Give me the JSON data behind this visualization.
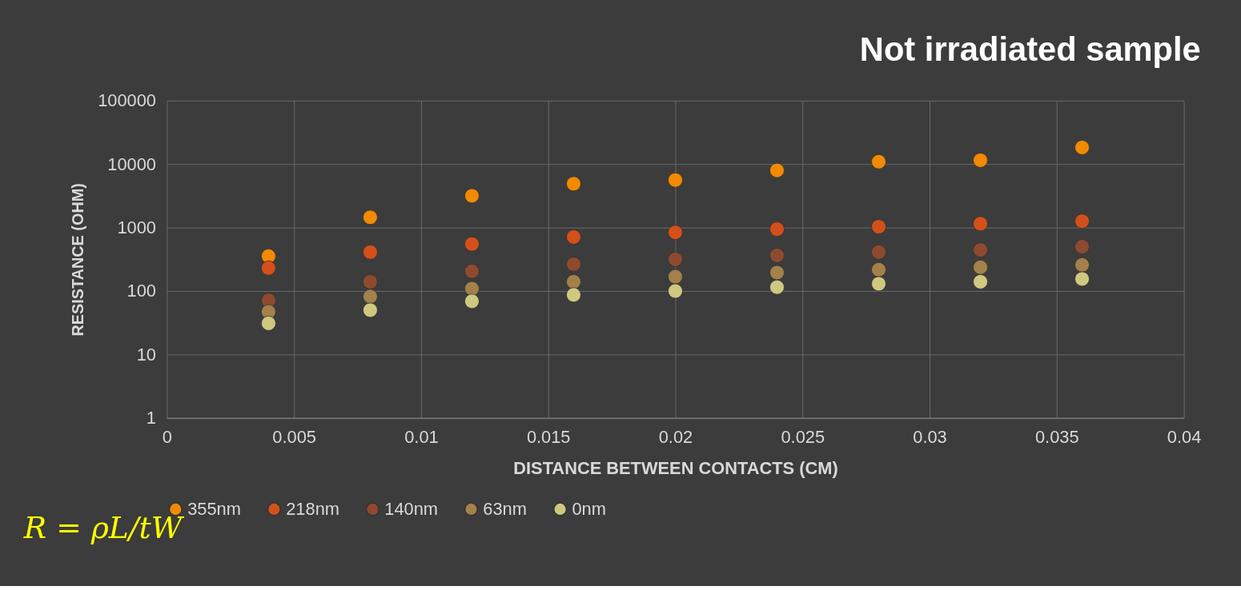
{
  "chart_data": {
    "type": "scatter",
    "title": "Not irradiated sample",
    "xlabel": "DISTANCE BETWEEN CONTACTS (CM)",
    "ylabel": "RESISTANCE (OHM)",
    "x": [
      0.004,
      0.008,
      0.012,
      0.016,
      0.02,
      0.024,
      0.028,
      0.032,
      0.036
    ],
    "series": [
      {
        "name": "355nm",
        "color": "#f28a00",
        "values": [
          355,
          1450,
          3160,
          4900,
          5600,
          7950,
          10900,
          11500,
          18300
        ]
      },
      {
        "name": "218nm",
        "color": "#d4501a",
        "values": [
          230,
          410,
          550,
          710,
          840,
          945,
          1030,
          1150,
          1260
        ]
      },
      {
        "name": "140nm",
        "color": "#8e4a2e",
        "values": [
          71,
          140,
          205,
          265,
          316,
          365,
          410,
          445,
          500
        ]
      },
      {
        "name": "63nm",
        "color": "#a4804a",
        "values": [
          47,
          82,
          109,
          140,
          168,
          195,
          217,
          237,
          258
        ]
      },
      {
        "name": "0nm",
        "color": "#cfc880",
        "values": [
          31,
          50,
          69,
          87,
          100,
          115,
          130,
          140,
          155
        ]
      }
    ],
    "xlim": [
      0,
      0.04
    ],
    "xticks": [
      0,
      0.005,
      0.01,
      0.015,
      0.02,
      0.025,
      0.03,
      0.035,
      0.04
    ],
    "ylim": [
      1,
      100000
    ],
    "yticks": [
      1,
      10,
      100,
      1000,
      10000,
      100000
    ],
    "log": "y",
    "grid": true,
    "legend": "bottom",
    "marker": "circle",
    "annotations": [
      "R = ρL/tW"
    ]
  }
}
